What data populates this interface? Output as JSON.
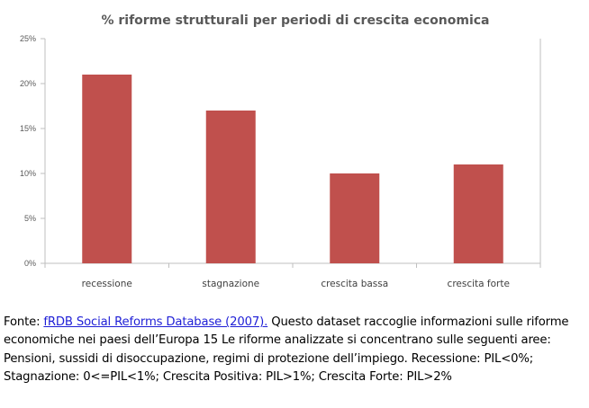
{
  "chart_data": {
    "type": "bar",
    "title": "% riforme strutturali per periodi di crescita economica",
    "categories": [
      "recessione",
      "stagnazione",
      "crescita bassa",
      "crescita forte"
    ],
    "values": [
      21,
      17,
      10,
      11
    ],
    "ylim": [
      0,
      25
    ],
    "yticks": [
      0,
      5,
      10,
      15,
      20,
      25
    ],
    "ytick_labels": [
      "0%",
      "5%",
      "10%",
      "15%",
      "20%",
      "25%"
    ],
    "xlabel": "",
    "ylabel": "",
    "grid": false,
    "bar_color": "#c0504d",
    "axis_color": "#bfbfbf"
  },
  "caption": {
    "prefix": "Fonte: ",
    "link_text": "fRDB Social Reforms Database (2007).",
    "text": " Questo dataset raccoglie informazioni sulle riforme economiche nei paesi dell’Europa 15 Le riforme analizzate si concentrano sulle seguenti aree: Pensioni, sussidi di disoccupazione, regimi di protezione dell’impiego. Recessione: PIL<0%; Stagnazione: 0<=PIL<1%; Crescita Positiva: PIL>1%; Crescita Forte: PIL>2%"
  }
}
